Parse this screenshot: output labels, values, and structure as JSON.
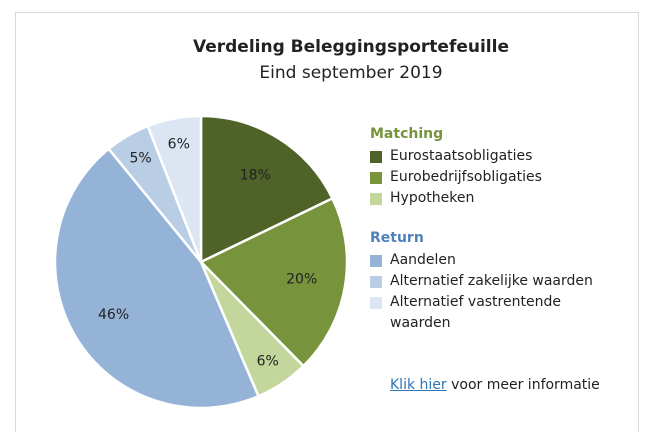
{
  "chart_data": {
    "type": "pie",
    "title": "Verdeling Beleggingsportefeuille",
    "subtitle": "Eind september 2019",
    "groups": [
      {
        "name": "Matching",
        "color": "#77933c",
        "categories": [
          "Eurostaatsobligaties",
          "Eurobedrijfsobligaties",
          "Hypotheken"
        ],
        "values": [
          18,
          20,
          6
        ],
        "value_labels": [
          "18%",
          "20%",
          "6%"
        ],
        "colors": [
          "#4f6228",
          "#77933c",
          "#c3d69b"
        ]
      },
      {
        "name": "Return",
        "color": "#4f81bd",
        "categories": [
          "Aandelen",
          "Alternatief zakelijke waarden",
          "Alternatief vastrentende waarden"
        ],
        "values": [
          46,
          5,
          6
        ],
        "value_labels": [
          "46%",
          "5%",
          "6%"
        ],
        "colors": [
          "#95b3d7",
          "#b9cde5",
          "#dce6f2"
        ]
      }
    ]
  },
  "link": {
    "text": "Klik hier",
    "rest": "voor meer informatie"
  }
}
